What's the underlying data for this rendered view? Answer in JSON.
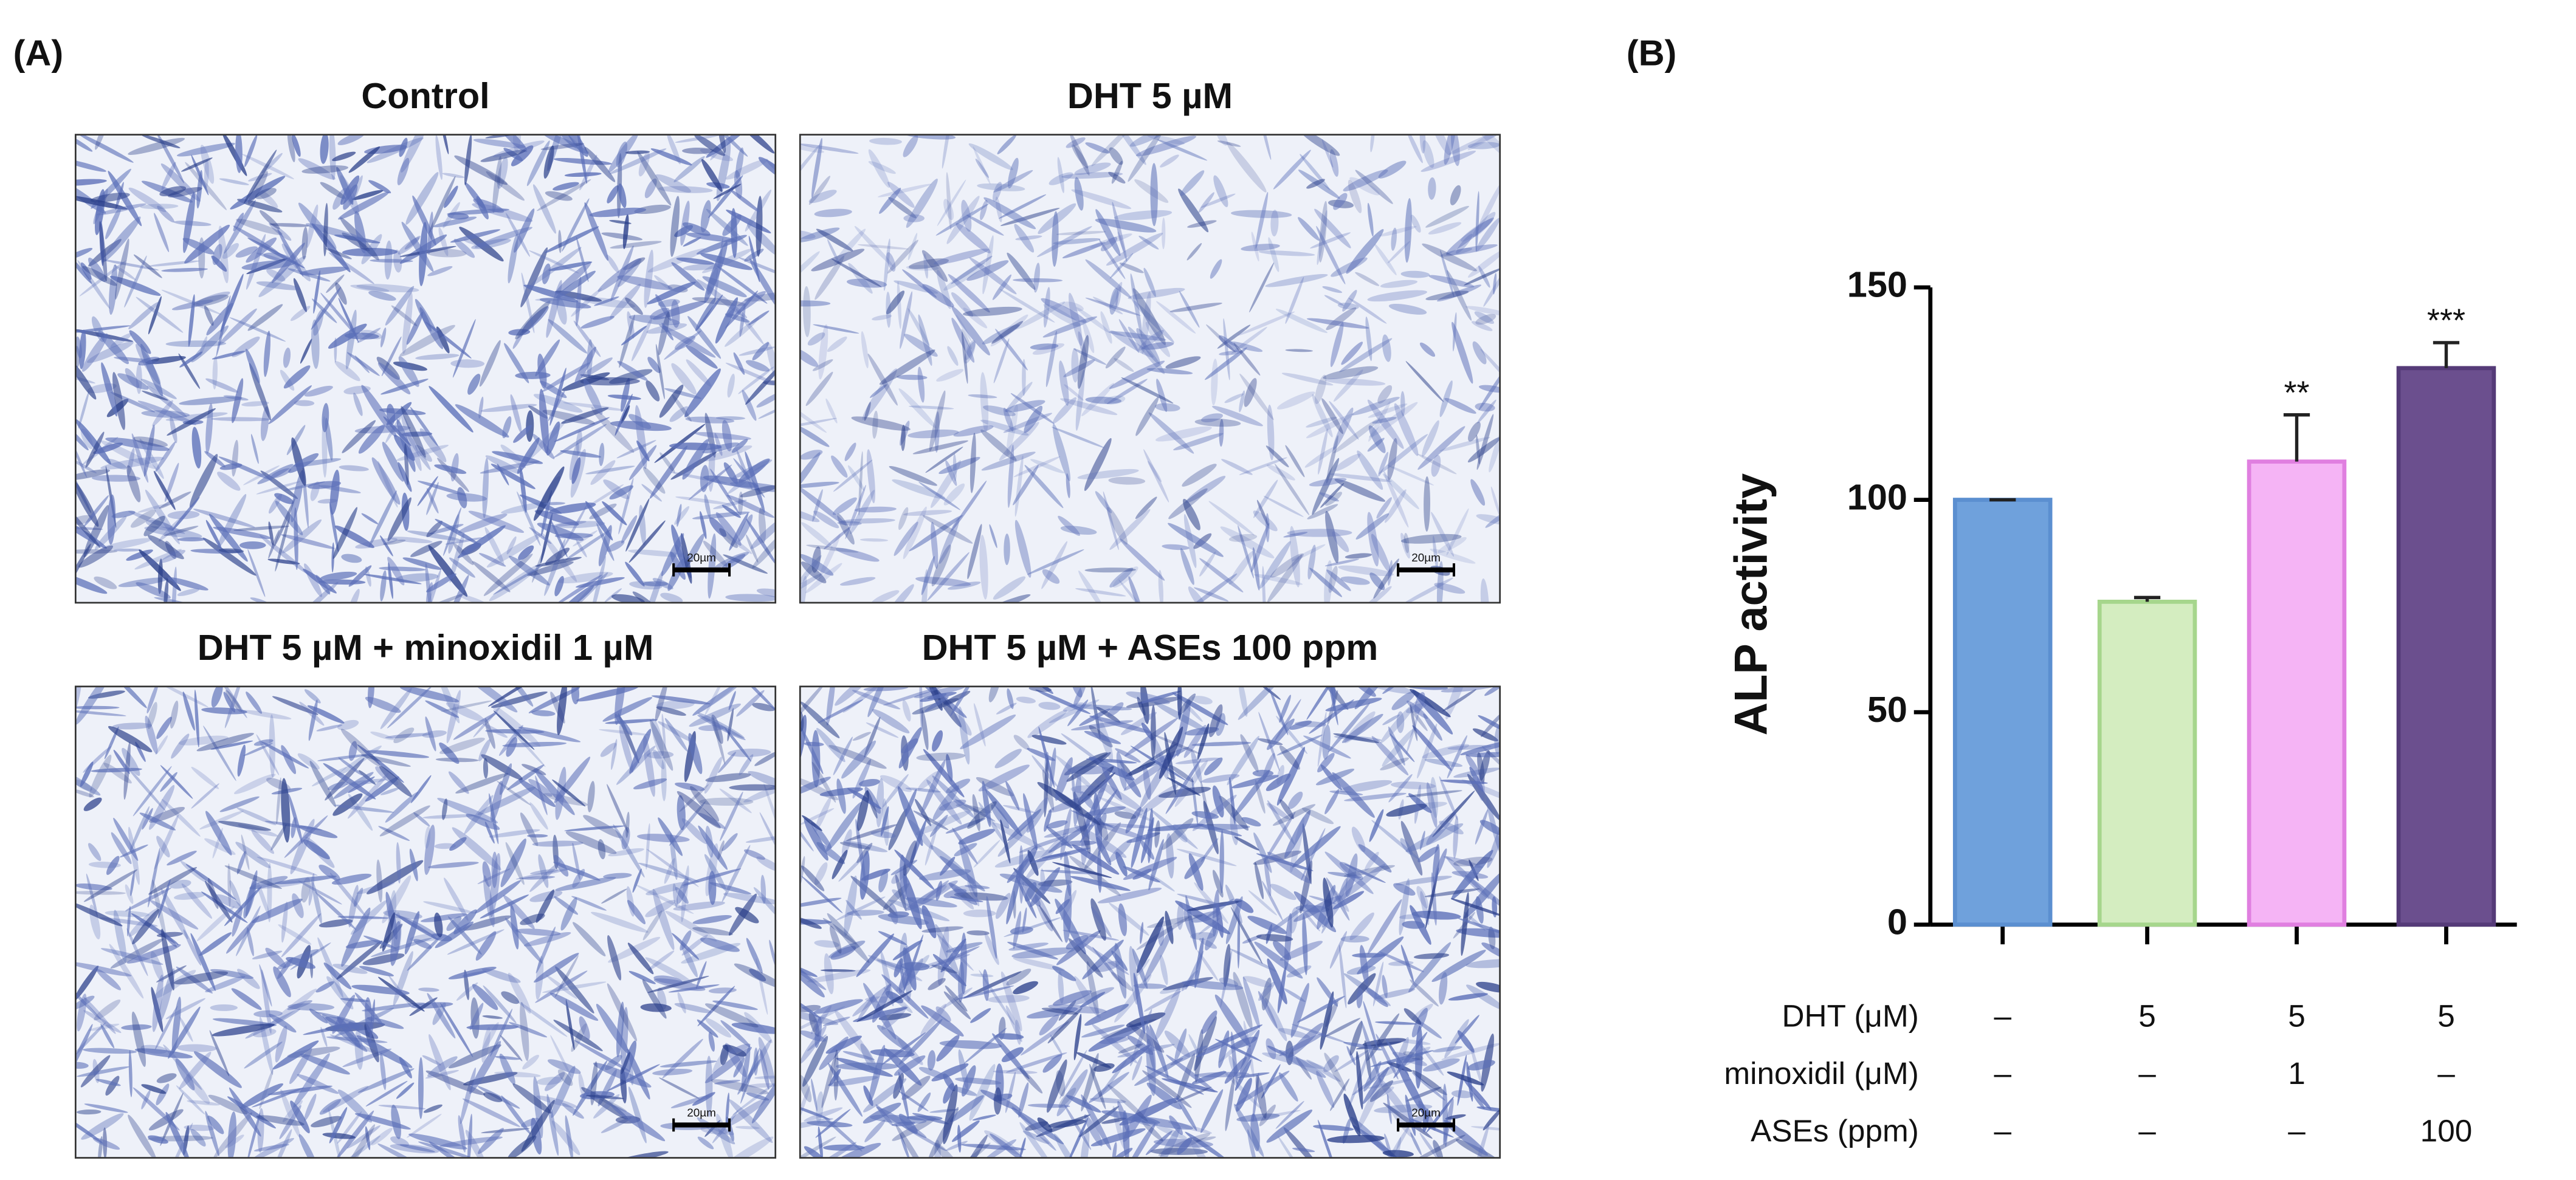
{
  "panel_a": {
    "label": "(A)",
    "panels": [
      {
        "title": "Control",
        "scale_label": "20µm"
      },
      {
        "title": "DHT 5 µM",
        "scale_label": "20µm"
      },
      {
        "title": "DHT 5 µM + minoxidil 1 µM",
        "scale_label": "20µm"
      },
      {
        "title": "DHT 5 µM + ASEs 100 ppm",
        "scale_label": "20µm"
      }
    ]
  },
  "chart_data": {
    "type": "bar",
    "label": "(B)",
    "y_label": "ALP activity",
    "values": [
      100,
      76,
      109,
      131
    ],
    "errors": [
      0,
      1,
      11,
      6
    ],
    "colors": [
      "#6fa1dc",
      "#d4edc0",
      "#f5b4f5",
      "#6b4f8e"
    ],
    "edge_colors": [
      "#5b8fd0",
      "#a6d68c",
      "#e07fe0",
      "#553b78"
    ],
    "significance": [
      null,
      null,
      "**",
      "***"
    ],
    "ylim": [
      0,
      150
    ],
    "yticks": [
      0,
      50,
      100,
      150
    ],
    "treatments": [
      {
        "label": "DHT (μM)",
        "values": [
          "–",
          "5",
          "5",
          "5"
        ]
      },
      {
        "label": "minoxidil (μM)",
        "values": [
          "–",
          "–",
          "1",
          "–"
        ]
      },
      {
        "label": "ASEs (ppm)",
        "values": [
          "–",
          "–",
          "–",
          "100"
        ]
      }
    ]
  }
}
